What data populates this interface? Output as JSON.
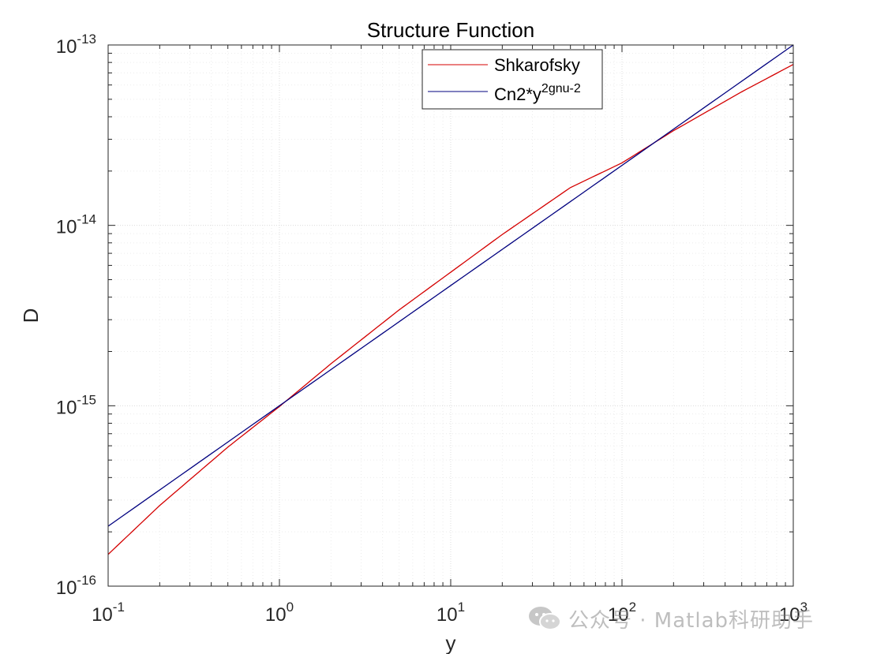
{
  "chart_data": {
    "type": "line",
    "title": "Structure Function",
    "xlabel": "y",
    "ylabel": "D",
    "xscale": "log",
    "yscale": "log",
    "xlim": [
      0.1,
      1000
    ],
    "ylim": [
      1e-16,
      1e-13
    ],
    "x_tick_labels": [
      {
        "base": "10",
        "exp": "-1"
      },
      {
        "base": "10",
        "exp": "0"
      },
      {
        "base": "10",
        "exp": "1"
      },
      {
        "base": "10",
        "exp": "2"
      },
      {
        "base": "10",
        "exp": "3"
      }
    ],
    "y_tick_labels": [
      {
        "base": "10",
        "exp": "-16"
      },
      {
        "base": "10",
        "exp": "-15"
      },
      {
        "base": "10",
        "exp": "-14"
      },
      {
        "base": "10",
        "exp": "-13"
      }
    ],
    "grid": true,
    "minor_grid": true,
    "legend_placement": "top-center",
    "series": [
      {
        "name": "Shkarofsky",
        "color": "#d40000",
        "x": [
          0.1,
          0.2,
          0.5,
          1,
          2,
          5,
          10,
          20,
          50,
          100,
          200,
          500,
          1000
        ],
        "y": [
          1.5e-16,
          2.8e-16,
          5.9e-16,
          9.9e-16,
          1.71e-15,
          3.4e-15,
          5.5e-15,
          8.9e-15,
          1.62e-14,
          2.22e-14,
          3.35e-14,
          5.5e-14,
          7.8e-14
        ]
      },
      {
        "name": "Cn2*y",
        "name_superscript": "2gnu-2",
        "color": "#00007f",
        "x": [
          0.1,
          1,
          10,
          100,
          1000
        ],
        "y": [
          2.15e-16,
          1e-15,
          4.64e-15,
          2.15e-14,
          1e-13
        ]
      }
    ]
  },
  "watermark": {
    "icon": "wechat-icon",
    "text": "公众号 · Matlab科研助手"
  }
}
